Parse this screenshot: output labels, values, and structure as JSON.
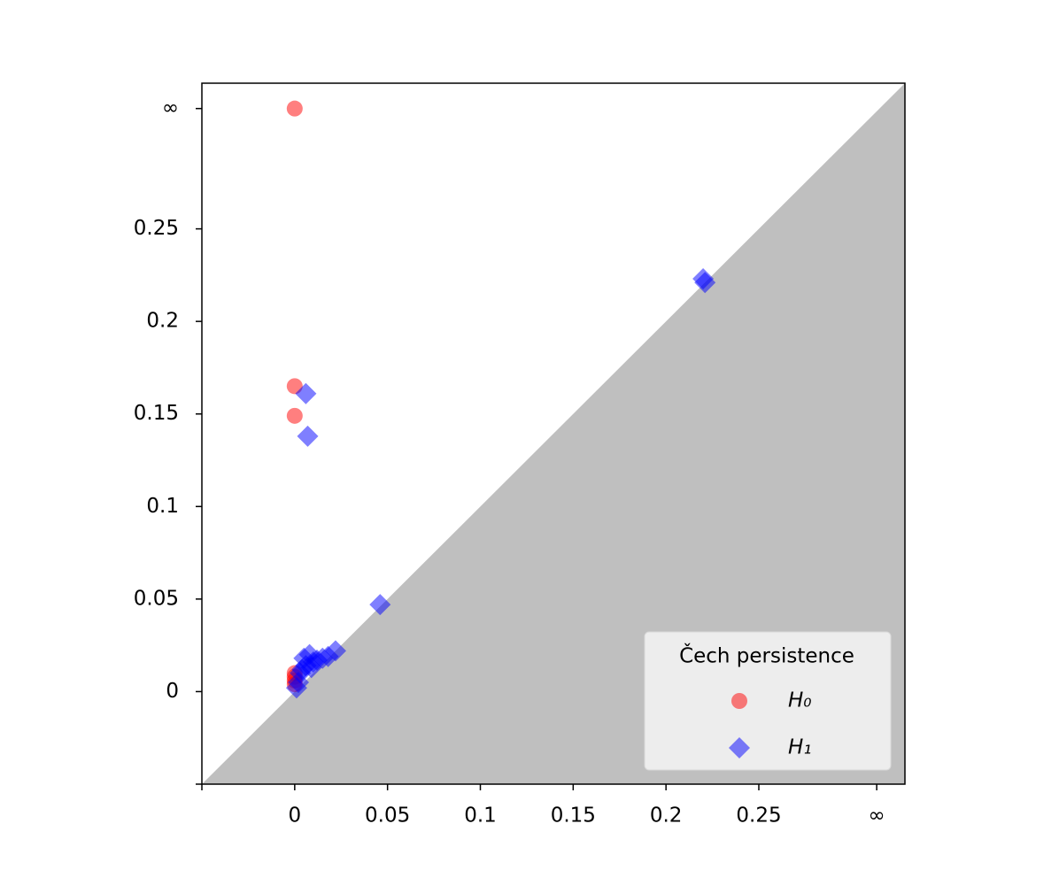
{
  "chart_data": {
    "type": "scatter",
    "xlim": [
      -0.05,
      0.3287
    ],
    "ylim": [
      -0.05,
      0.3287
    ],
    "xticks": [
      {
        "value": -0.05,
        "label": null
      },
      0.0,
      0.05,
      0.1,
      0.15,
      0.2,
      0.25,
      {
        "value": 0.3135,
        "label": "∞"
      }
    ],
    "yticks": [
      {
        "value": -0.05,
        "label": null
      },
      0.0,
      0.05,
      0.1,
      0.15,
      0.2,
      0.25,
      {
        "value": 0.315,
        "label": "∞"
      }
    ],
    "xtick_labels": [
      "0.0",
      "0.05",
      "0.1",
      "0.15",
      "0.2",
      "0.25"
    ],
    "legend_title": "Čech persistence",
    "legend_loc": "lower right",
    "series": [
      {
        "name": "H₀",
        "color": "#ff0000",
        "marker": "circle",
        "x": [
          0,
          0,
          0,
          0,
          0,
          0,
          0
        ],
        "values": [
          0.315,
          0.165,
          0.149,
          0.008,
          0.006,
          0.004,
          0.01
        ]
      },
      {
        "name": "H₁",
        "color": "#0000ff",
        "marker": "diamond",
        "x": [
          0.22,
          0.221,
          0.006,
          0.007,
          0.046,
          0.022,
          0.005,
          0.008,
          0.01,
          0.012,
          0.015,
          0.003,
          0.002,
          0.001,
          0.018,
          0.006,
          0.004,
          0.009
        ],
        "values": [
          0.223,
          0.221,
          0.161,
          0.138,
          0.047,
          0.022,
          0.018,
          0.02,
          0.016,
          0.017,
          0.018,
          0.01,
          0.005,
          0.002,
          0.019,
          0.014,
          0.012,
          0.013
        ]
      }
    ]
  }
}
